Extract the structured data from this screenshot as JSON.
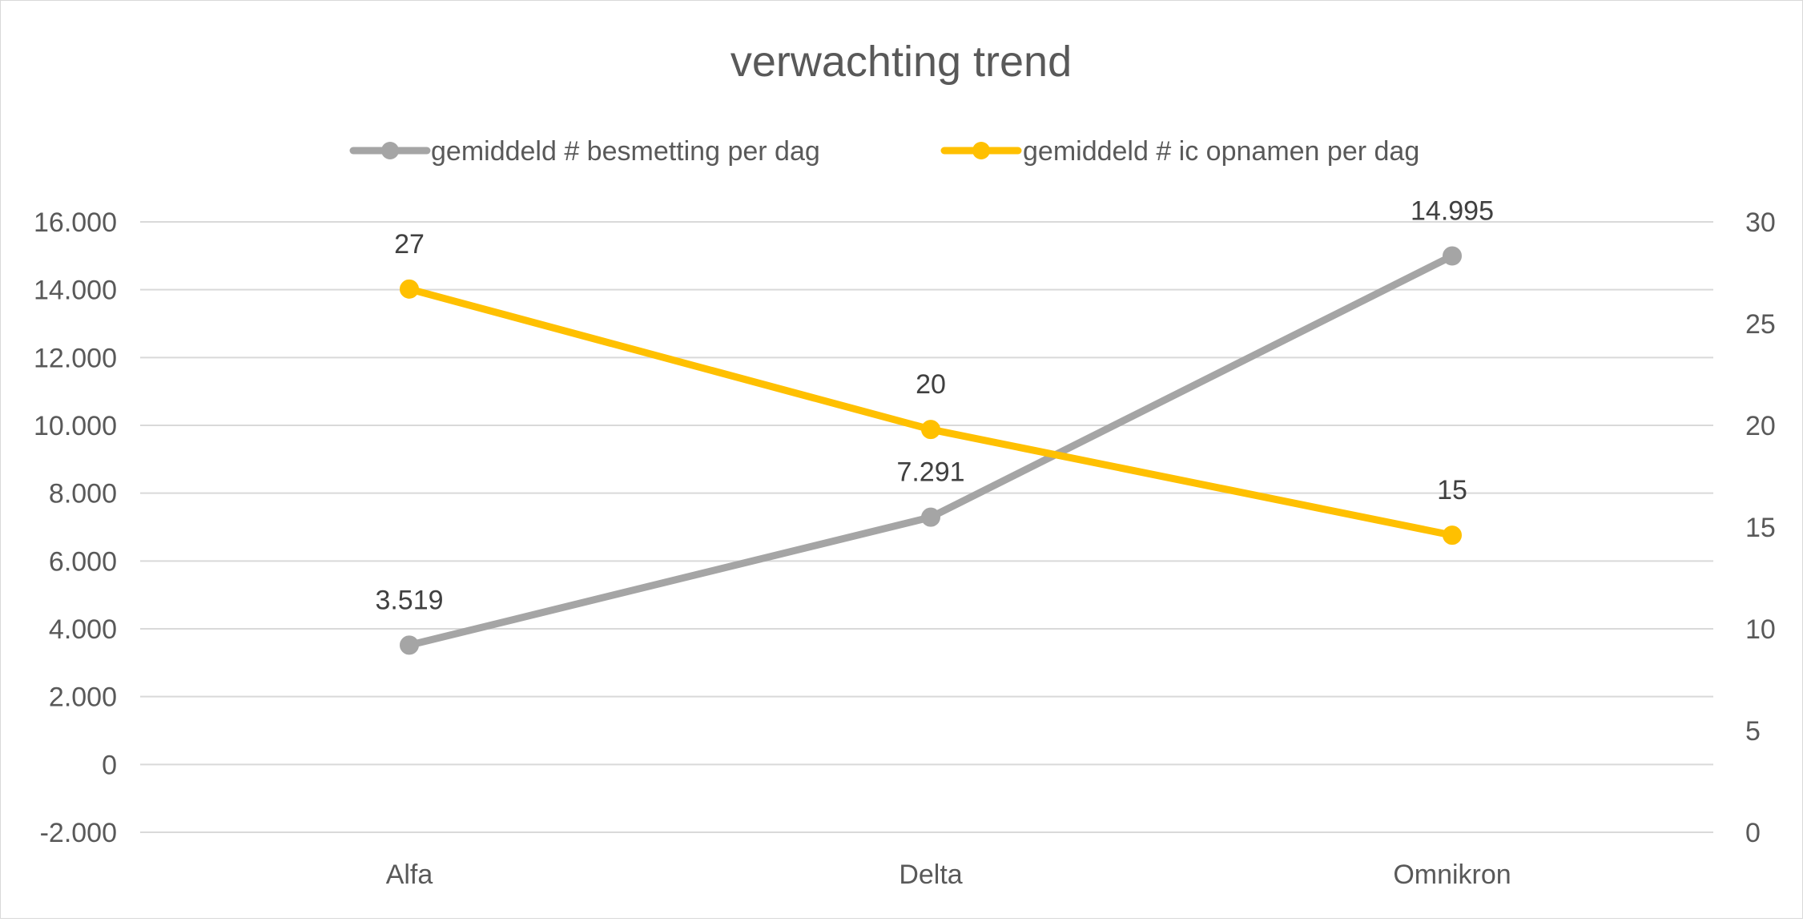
{
  "chart_data": {
    "type": "line",
    "title": "verwachting trend",
    "categories": [
      "Alfa",
      "Delta",
      "Omnikron"
    ],
    "series": [
      {
        "name": "gemiddeld # besmetting per dag",
        "axis": "left",
        "color": "#a5a5a5",
        "values": [
          3519,
          7291,
          14995
        ],
        "labels": [
          "3.519",
          "7.291",
          "14.995"
        ]
      },
      {
        "name": "gemiddeld # ic opnamen per dag",
        "axis": "right",
        "color": "#ffc000",
        "values": [
          26.7,
          19.8,
          14.6
        ],
        "labels": [
          "27",
          "20",
          "15"
        ]
      }
    ],
    "y_left": {
      "range": [
        -2000,
        16000
      ],
      "ticks": [
        -2000,
        0,
        2000,
        4000,
        6000,
        8000,
        10000,
        12000,
        14000,
        16000
      ],
      "tick_labels": [
        "-2.000",
        "0",
        "2.000",
        "4.000",
        "6.000",
        "8.000",
        "10.000",
        "12.000",
        "14.000",
        "16.000"
      ]
    },
    "y_right": {
      "range": [
        0,
        30
      ],
      "ticks": [
        0,
        5,
        10,
        15,
        20,
        25,
        30
      ],
      "tick_labels": [
        "0",
        "5",
        "10",
        "15",
        "20",
        "25",
        "30"
      ]
    },
    "grid": true,
    "legend_position": "top",
    "gridline_color": "#d9d9d9"
  }
}
